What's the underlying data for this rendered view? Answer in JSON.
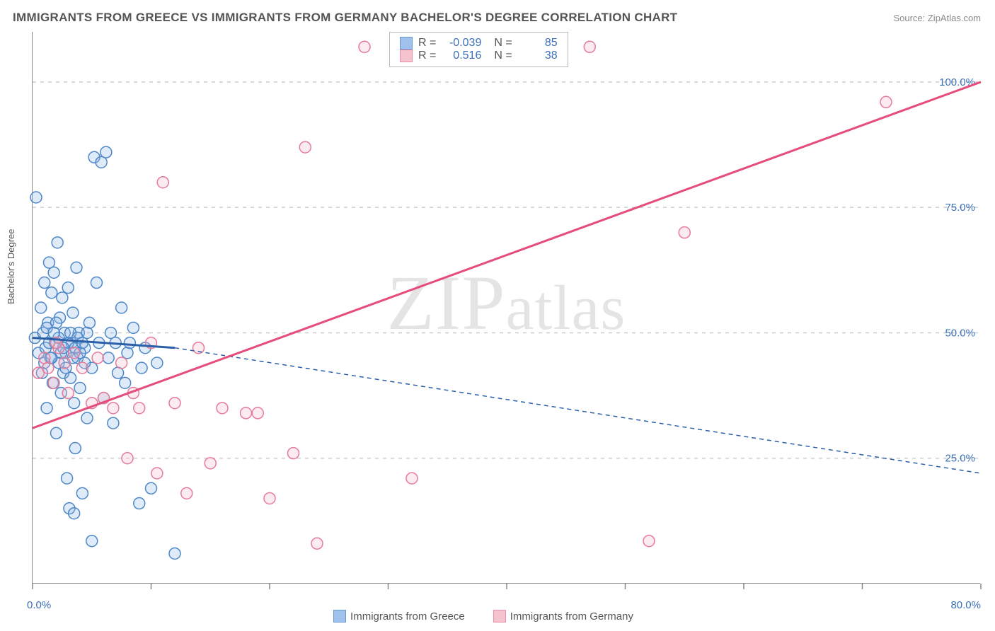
{
  "title": "IMMIGRANTS FROM GREECE VS IMMIGRANTS FROM GERMANY BACHELOR'S DEGREE CORRELATION CHART",
  "source": "Source: ZipAtlas.com",
  "watermark": "ZIPatlas",
  "ylabel": "Bachelor's Degree",
  "chart": {
    "type": "scatter",
    "background_color": "#ffffff",
    "grid_color": "#cccccc",
    "axis_color": "#888888",
    "text_color": "#555555",
    "value_color": "#3b6fb6",
    "xlim": [
      0,
      80
    ],
    "ylim": [
      0,
      110
    ],
    "xticks": [
      0,
      10,
      20,
      30,
      40,
      50,
      60,
      70,
      80
    ],
    "xtick_labels": {
      "0": "0.0%",
      "80": "80.0%"
    },
    "yticks": [
      25,
      50,
      75,
      100
    ],
    "ytick_labels": [
      "25.0%",
      "50.0%",
      "75.0%",
      "100.0%"
    ],
    "marker_radius": 8,
    "marker_stroke_width": 1.5,
    "marker_fill_opacity": 0.28,
    "series": [
      {
        "name": "Immigrants from Greece",
        "color_fill": "#8fb7e8",
        "color_stroke": "#4d87c7",
        "R": "-0.039",
        "N": "85",
        "regression": {
          "solid_from": [
            0,
            49
          ],
          "solid_to": [
            12,
            47
          ],
          "dash_from": [
            12,
            47
          ],
          "dash_to": [
            80,
            22
          ],
          "color": "#2b5fa8",
          "width": 3,
          "dash": "6,5"
        },
        "points": [
          [
            0.2,
            49
          ],
          [
            0.3,
            77
          ],
          [
            0.5,
            46
          ],
          [
            0.7,
            55
          ],
          [
            0.8,
            42
          ],
          [
            0.9,
            50
          ],
          [
            1.0,
            60
          ],
          [
            1.1,
            47
          ],
          [
            1.2,
            35
          ],
          [
            1.3,
            52
          ],
          [
            1.4,
            64
          ],
          [
            1.5,
            45
          ],
          [
            1.6,
            58
          ],
          [
            1.7,
            40
          ],
          [
            1.8,
            62
          ],
          [
            1.9,
            48
          ],
          [
            2.0,
            30
          ],
          [
            2.1,
            68
          ],
          [
            2.2,
            44
          ],
          [
            2.3,
            53
          ],
          [
            2.4,
            38
          ],
          [
            2.5,
            57
          ],
          [
            2.6,
            42
          ],
          [
            2.7,
            50
          ],
          [
            2.8,
            46
          ],
          [
            2.9,
            21
          ],
          [
            3.0,
            59
          ],
          [
            3.1,
            15
          ],
          [
            3.2,
            41
          ],
          [
            3.3,
            48
          ],
          [
            3.4,
            54
          ],
          [
            3.5,
            36
          ],
          [
            3.6,
            27
          ],
          [
            3.7,
            63
          ],
          [
            3.8,
            45
          ],
          [
            3.9,
            50
          ],
          [
            4.0,
            39
          ],
          [
            4.2,
            18
          ],
          [
            4.4,
            47
          ],
          [
            4.6,
            33
          ],
          [
            4.8,
            52
          ],
          [
            5.0,
            43
          ],
          [
            5.2,
            85
          ],
          [
            5.4,
            60
          ],
          [
            5.6,
            48
          ],
          [
            5.8,
            84
          ],
          [
            6.0,
            37
          ],
          [
            6.2,
            86
          ],
          [
            6.4,
            45
          ],
          [
            6.6,
            50
          ],
          [
            6.8,
            32
          ],
          [
            7.0,
            48
          ],
          [
            7.2,
            42
          ],
          [
            7.5,
            55
          ],
          [
            7.8,
            40
          ],
          [
            8.0,
            46
          ],
          [
            8.2,
            48
          ],
          [
            8.5,
            51
          ],
          [
            9.0,
            16
          ],
          [
            9.2,
            43
          ],
          [
            9.5,
            47
          ],
          [
            10.0,
            19
          ],
          [
            10.5,
            44
          ],
          [
            3.0,
            48
          ],
          [
            3.2,
            50
          ],
          [
            3.4,
            45
          ],
          [
            3.6,
            47
          ],
          [
            2.0,
            52
          ],
          [
            2.2,
            49
          ],
          [
            2.4,
            46
          ],
          [
            1.0,
            44
          ],
          [
            1.2,
            51
          ],
          [
            1.4,
            48
          ],
          [
            1.6,
            45
          ],
          [
            1.8,
            50
          ],
          [
            2.6,
            47
          ],
          [
            2.8,
            43
          ],
          [
            3.8,
            49
          ],
          [
            4.0,
            46
          ],
          [
            4.2,
            48
          ],
          [
            4.4,
            44
          ],
          [
            4.6,
            50
          ],
          [
            5.0,
            8.5
          ],
          [
            12.0,
            6
          ],
          [
            3.5,
            14
          ]
        ]
      },
      {
        "name": "Immigrants from Germany",
        "color_fill": "#f5b8c8",
        "color_stroke": "#e67a9a",
        "R": "0.516",
        "N": "38",
        "regression": {
          "solid_from": [
            0,
            31
          ],
          "solid_to": [
            80,
            100
          ],
          "color": "#e64d7a",
          "width": 3
        },
        "points": [
          [
            0.5,
            42
          ],
          [
            1.0,
            45
          ],
          [
            1.3,
            43
          ],
          [
            1.8,
            40
          ],
          [
            2.2,
            47
          ],
          [
            2.7,
            44
          ],
          [
            3.0,
            38
          ],
          [
            3.5,
            46
          ],
          [
            4.2,
            43
          ],
          [
            5.0,
            36
          ],
          [
            5.5,
            45
          ],
          [
            6.0,
            37
          ],
          [
            6.8,
            35
          ],
          [
            7.5,
            44
          ],
          [
            8.0,
            25
          ],
          [
            8.5,
            38
          ],
          [
            9.0,
            35
          ],
          [
            10.0,
            48
          ],
          [
            10.5,
            22
          ],
          [
            11.0,
            80
          ],
          [
            12.0,
            36
          ],
          [
            13.0,
            18
          ],
          [
            14.0,
            47
          ],
          [
            15.0,
            24
          ],
          [
            16.0,
            35
          ],
          [
            18.0,
            34
          ],
          [
            19.0,
            34
          ],
          [
            20.0,
            17
          ],
          [
            22.0,
            26
          ],
          [
            23.0,
            87
          ],
          [
            24.0,
            8
          ],
          [
            28.0,
            107
          ],
          [
            32.0,
            21
          ],
          [
            47.0,
            107
          ],
          [
            52.0,
            8.5
          ],
          [
            72.0,
            96
          ],
          [
            55.0,
            70
          ],
          [
            2.0,
            48
          ]
        ]
      }
    ]
  }
}
